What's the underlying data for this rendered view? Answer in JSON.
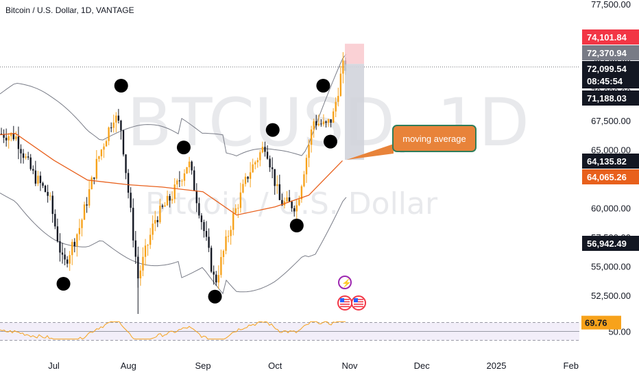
{
  "header": {
    "title": "Bitcoin / U.S. Dollar, 1D, VANTAGE"
  },
  "watermark": {
    "symbol": "BTCUSD, 1D",
    "name": "Bitcoin / U.S. Dollar"
  },
  "annotation": {
    "callout_text": "moving average"
  },
  "colors": {
    "up": "#f7a21b",
    "down": "#131722",
    "ma": "#e8601c",
    "bands": "#787b86",
    "rsi": "#f7a21b",
    "callout": "#e8833a",
    "callout_border": "#2e7d5b"
  },
  "price_tags": [
    {
      "label": "74,101.84",
      "bg": "#f23645",
      "fg": "#ffffff",
      "value": 74101.84
    },
    {
      "label": "72,370.94",
      "bg": "#787b86",
      "fg": "#ffffff",
      "value": 72370.94
    },
    {
      "label": "72,099.54",
      "bg": "#131722",
      "fg": "#ffffff",
      "value": 72099.54
    },
    {
      "label": "08:45:54",
      "bg": "#131722",
      "fg": "#ffffff",
      "value": null
    },
    {
      "label": "71,188.03",
      "bg": "#131722",
      "fg": "#ffffff",
      "value": 71188.03
    },
    {
      "label": "64,135.82",
      "bg": "#131722",
      "fg": "#ffffff",
      "value": 64135.82
    },
    {
      "label": "64,065.26",
      "bg": "#e8601c",
      "fg": "#ffffff",
      "value": 64065.26
    },
    {
      "label": "56,942.49",
      "bg": "#131722",
      "fg": "#ffffff",
      "value": 56942.49
    }
  ],
  "rsi": {
    "label": "69.76",
    "level_label": "50.00"
  },
  "chart_data": {
    "type": "candlestick",
    "title": "Bitcoin / U.S. Dollar, 1D, VANTAGE",
    "y_ticks": [
      "77,500.00",
      "75,000.00",
      "72,500.00",
      "70,000.00",
      "67,500.00",
      "65,000.00",
      "62,500.00",
      "60,000.00",
      "57,500.00",
      "55,000.00",
      "52,500.00"
    ],
    "y_tick_values": [
      77500,
      75000,
      72500,
      70000,
      67500,
      65000,
      62500,
      60000,
      57500,
      55000,
      52500
    ],
    "ylim": [
      50700,
      77700
    ],
    "x_ticks": [
      {
        "label": "Jul",
        "date": "2024-07-01"
      },
      {
        "label": "Aug",
        "date": "2024-08-01"
      },
      {
        "label": "Sep",
        "date": "2024-09-01"
      },
      {
        "label": "Oct",
        "date": "2024-10-01"
      },
      {
        "label": "Nov",
        "date": "2024-11-01"
      },
      {
        "label": "Dec",
        "date": "2024-12-01"
      },
      {
        "label": "2025",
        "date": "2025-01-01"
      },
      {
        "label": "Feb",
        "date": "2025-02-01"
      }
    ],
    "closes": [
      {
        "date": "2024-06-01",
        "close": 67760
      },
      {
        "date": "2024-06-08",
        "close": 66400
      },
      {
        "date": "2024-06-15",
        "close": 66200
      },
      {
        "date": "2024-06-22",
        "close": 63000
      },
      {
        "date": "2024-06-29",
        "close": 61000
      },
      {
        "date": "2024-07-05",
        "close": 55000
      },
      {
        "date": "2024-07-12",
        "close": 58500
      },
      {
        "date": "2024-07-19",
        "close": 64000
      },
      {
        "date": "2024-07-26",
        "close": 68000
      },
      {
        "date": "2024-07-29",
        "close": 66800
      },
      {
        "date": "2024-08-05",
        "close": 54000
      },
      {
        "date": "2024-08-12",
        "close": 59000
      },
      {
        "date": "2024-08-19",
        "close": 61000
      },
      {
        "date": "2024-08-26",
        "close": 64000
      },
      {
        "date": "2024-09-02",
        "close": 57500
      },
      {
        "date": "2024-09-06",
        "close": 53500
      },
      {
        "date": "2024-09-13",
        "close": 58900
      },
      {
        "date": "2024-09-20",
        "close": 63000
      },
      {
        "date": "2024-09-27",
        "close": 65500
      },
      {
        "date": "2024-10-03",
        "close": 60500
      },
      {
        "date": "2024-10-10",
        "close": 60200
      },
      {
        "date": "2024-10-17",
        "close": 67500
      },
      {
        "date": "2024-10-22",
        "close": 67000
      },
      {
        "date": "2024-10-25",
        "close": 67800
      },
      {
        "date": "2024-10-29",
        "close": 72099.54
      }
    ],
    "marked_points": [
      {
        "date": "2024-05-29",
        "price": 71200
      },
      {
        "date": "2024-07-05",
        "price": 53500
      },
      {
        "date": "2024-07-29",
        "price": 70500
      },
      {
        "date": "2024-08-24",
        "price": 65200
      },
      {
        "date": "2024-09-06",
        "price": 52400
      },
      {
        "date": "2024-09-30",
        "price": 66700
      },
      {
        "date": "2024-10-10",
        "price": 58500
      },
      {
        "date": "2024-10-21",
        "price": 70500
      },
      {
        "date": "2024-10-24",
        "price": 65700
      }
    ],
    "moving_average": [
      {
        "date": "2024-05-28",
        "value": 66100
      },
      {
        "date": "2024-06-15",
        "value": 66400
      },
      {
        "date": "2024-07-01",
        "value": 64100
      },
      {
        "date": "2024-07-15",
        "value": 62400
      },
      {
        "date": "2024-08-01",
        "value": 62000
      },
      {
        "date": "2024-08-15",
        "value": 61800
      },
      {
        "date": "2024-09-01",
        "value": 61400
      },
      {
        "date": "2024-09-15",
        "value": 59400
      },
      {
        "date": "2024-10-01",
        "value": 60100
      },
      {
        "date": "2024-10-15",
        "value": 61100
      },
      {
        "date": "2024-10-29",
        "value": 64065.26
      }
    ],
    "rsi_value": 69.76,
    "rsi_levels": [
      70,
      50,
      30
    ]
  }
}
